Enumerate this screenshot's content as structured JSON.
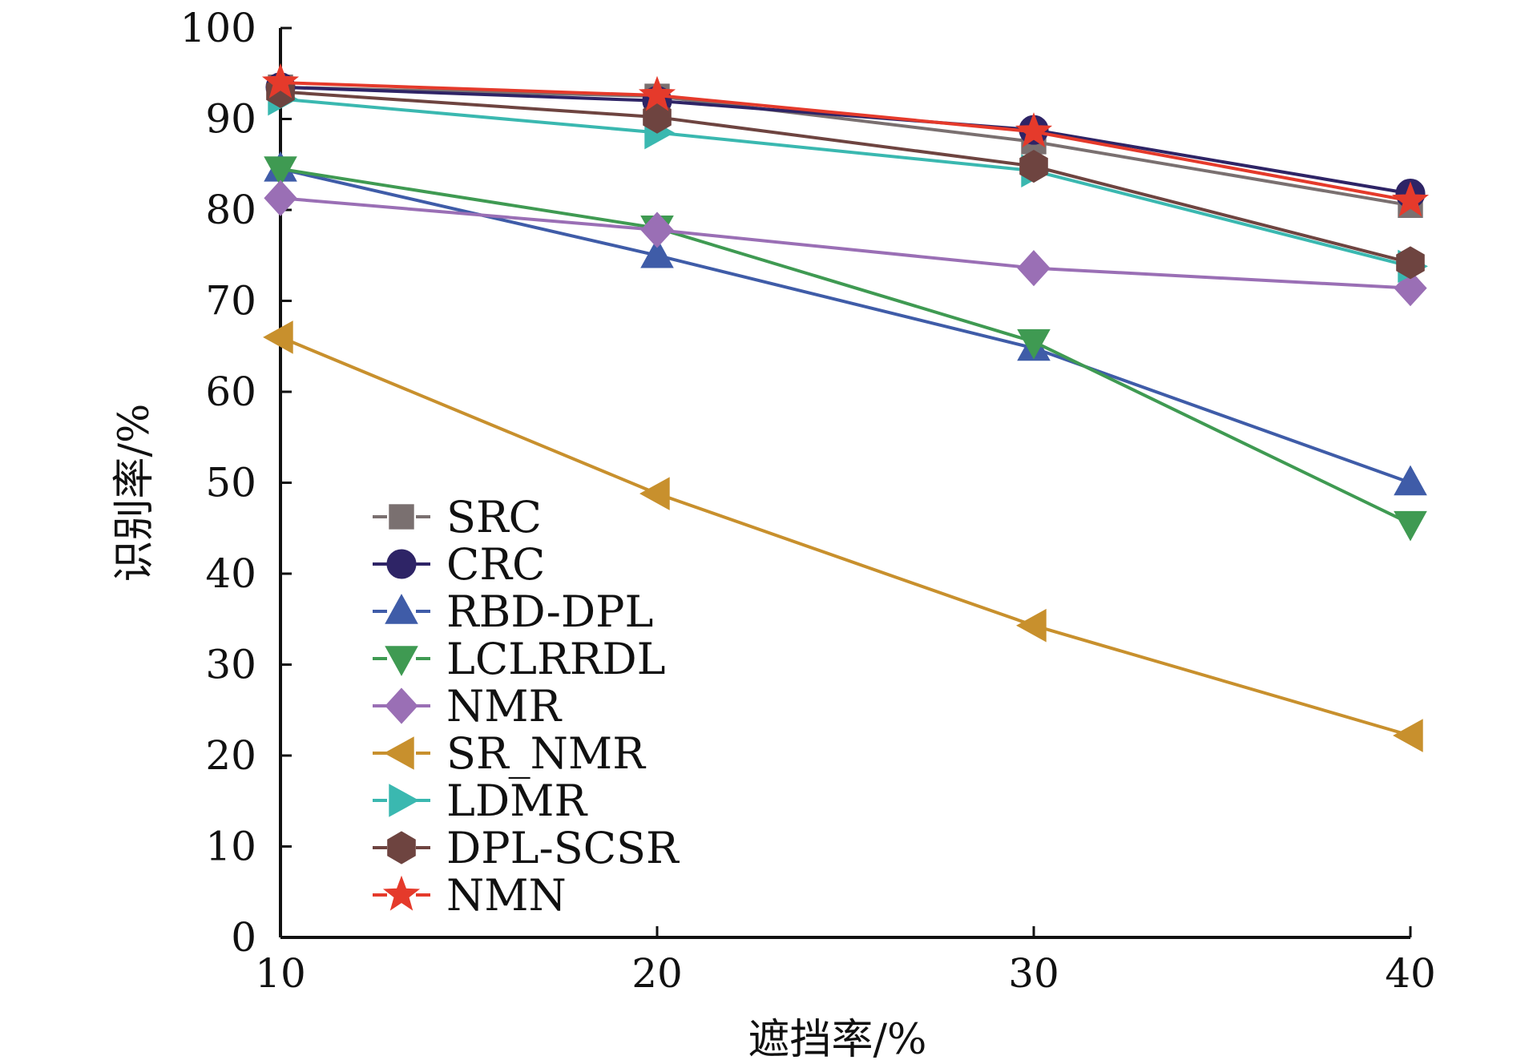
{
  "chart_data": {
    "type": "line",
    "title": "",
    "xlabel": "遮挡率/%",
    "ylabel": "识别率/%",
    "x": [
      10,
      20,
      30,
      40
    ],
    "xlim": [
      10,
      40
    ],
    "ylim": [
      0,
      100
    ],
    "x_ticks": [
      10,
      20,
      30,
      40
    ],
    "y_ticks": [
      0,
      10,
      20,
      30,
      40,
      50,
      60,
      70,
      80,
      90,
      100
    ],
    "x_tick_labels": [
      "10",
      "20",
      "30",
      "40"
    ],
    "y_tick_labels": [
      "0",
      "10",
      "20",
      "30",
      "40",
      "50",
      "60",
      "70",
      "80",
      "90",
      "100"
    ],
    "grid": false,
    "legend_position": "lower-left",
    "series": [
      {
        "name": "SRC",
        "values": [
          93.5,
          92.5,
          87.5,
          80.5
        ],
        "color": "#7a7070",
        "dash": "dashed",
        "marker": "square"
      },
      {
        "name": "CRC",
        "values": [
          93.5,
          92.0,
          88.8,
          81.8
        ],
        "color": "#2e2466",
        "dash": "dashed",
        "marker": "circle"
      },
      {
        "name": "RBD-DPL",
        "values": [
          84.5,
          75.0,
          64.8,
          50.0
        ],
        "color": "#3f5ca8",
        "dash": "dashed",
        "marker": "triangle-up"
      },
      {
        "name": "LCLRRDL",
        "values": [
          84.5,
          78.0,
          65.5,
          45.5
        ],
        "color": "#3f9a52",
        "dash": "dashed",
        "marker": "triangle-down"
      },
      {
        "name": "NMR",
        "values": [
          81.3,
          77.8,
          73.6,
          71.4
        ],
        "color": "#9a6fb5",
        "dash": "solid",
        "marker": "diamond"
      },
      {
        "name": "SR_NMR",
        "values": [
          66.0,
          48.8,
          34.3,
          22.2
        ],
        "color": "#c8902d",
        "dash": "dashed",
        "marker": "triangle-left"
      },
      {
        "name": "LDMR",
        "values": [
          92.2,
          88.5,
          84.3,
          73.8
        ],
        "color": "#3ab8b0",
        "dash": "dashed",
        "marker": "triangle-right"
      },
      {
        "name": "DPL-SCSR",
        "values": [
          93.0,
          90.2,
          84.8,
          74.2
        ],
        "color": "#6e4440",
        "dash": "dashed",
        "marker": "hexagon"
      },
      {
        "name": "NMN",
        "values": [
          94.0,
          92.6,
          88.6,
          81.0
        ],
        "color": "#e53a2b",
        "dash": "dashed",
        "marker": "star"
      }
    ]
  }
}
